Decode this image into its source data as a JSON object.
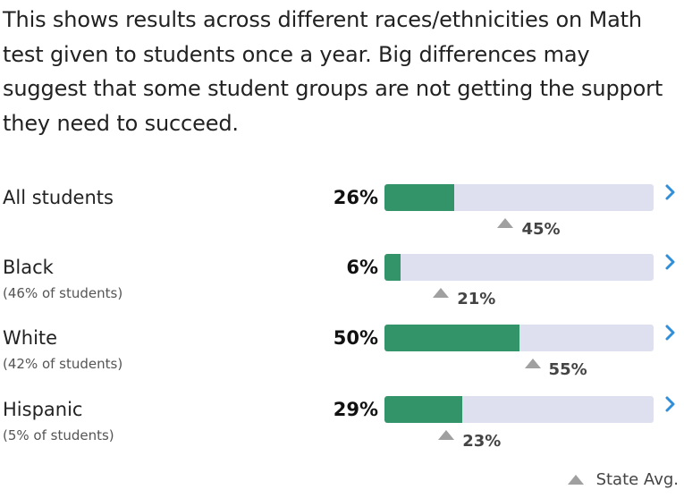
{
  "description": "This shows results across different races/ethnicities on Math test given to students once a year. Big differences may suggest that some student groups are not getting the support they need to succeed.",
  "groups": [
    {
      "name": "All students",
      "share": "",
      "score_label": "26%",
      "score": 0.26,
      "state_avg_label": "45%",
      "state_avg": 0.45
    },
    {
      "name": "Black",
      "share": "(46% of students)",
      "score_label": "6%",
      "score": 0.06,
      "state_avg_label": "21%",
      "state_avg": 0.21
    },
    {
      "name": "White",
      "share": "(42% of students)",
      "score_label": "50%",
      "score": 0.5,
      "state_avg_label": "55%",
      "state_avg": 0.55
    },
    {
      "name": "Hispanic",
      "share": "(5% of students)",
      "score_label": "29%",
      "score": 0.29,
      "state_avg_label": "23%",
      "state_avg": 0.23
    }
  ],
  "legend": {
    "label": "State Avg.",
    "icon": "triangle-up-icon"
  },
  "icons": {
    "expand": "chevron-right-icon",
    "state_marker": "triangle-up-icon"
  },
  "colors": {
    "bar_fill": "#339369",
    "bar_track": "#dfe0ef",
    "marker": "#a0a0a0",
    "chevron": "#2f8fd8"
  }
}
